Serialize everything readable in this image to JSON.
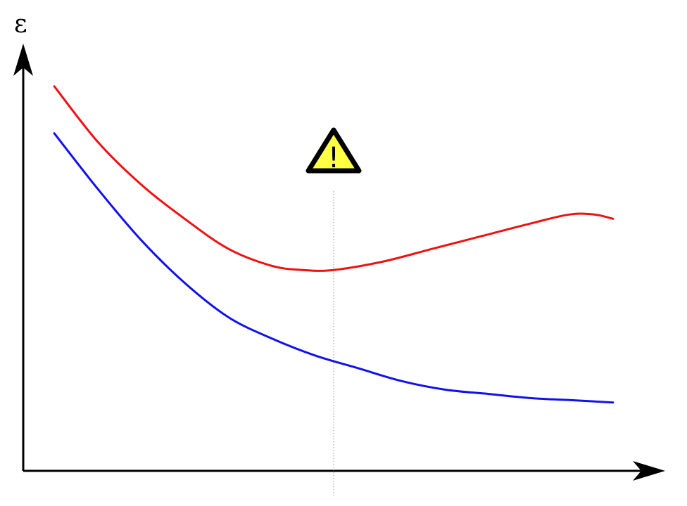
{
  "chart_data": {
    "type": "line",
    "ylabel": "ε",
    "xlabel": "",
    "title": "",
    "grid": false,
    "marker": {
      "x": 0.5,
      "icon": "warning-triangle-icon",
      "icon_glyph": "!",
      "icon_fill": "#ffff44",
      "line_color": "#999999"
    },
    "series": [
      {
        "color": "#ee1111",
        "points": [
          [
            0.05,
            0.9
          ],
          [
            0.12,
            0.77
          ],
          [
            0.19,
            0.67
          ],
          [
            0.26,
            0.59
          ],
          [
            0.33,
            0.52
          ],
          [
            0.4,
            0.48
          ],
          [
            0.45,
            0.47
          ],
          [
            0.5,
            0.47
          ],
          [
            0.58,
            0.49
          ],
          [
            0.66,
            0.52
          ],
          [
            0.74,
            0.55
          ],
          [
            0.82,
            0.58
          ],
          [
            0.88,
            0.6
          ],
          [
            0.92,
            0.6
          ],
          [
            0.95,
            0.59
          ]
        ]
      },
      {
        "color": "#1111ee",
        "points": [
          [
            0.05,
            0.79
          ],
          [
            0.12,
            0.66
          ],
          [
            0.19,
            0.54
          ],
          [
            0.26,
            0.44
          ],
          [
            0.33,
            0.36
          ],
          [
            0.4,
            0.31
          ],
          [
            0.47,
            0.27
          ],
          [
            0.54,
            0.24
          ],
          [
            0.61,
            0.21
          ],
          [
            0.68,
            0.19
          ],
          [
            0.75,
            0.18
          ],
          [
            0.82,
            0.17
          ],
          [
            0.89,
            0.165
          ],
          [
            0.95,
            0.16
          ]
        ]
      }
    ]
  }
}
